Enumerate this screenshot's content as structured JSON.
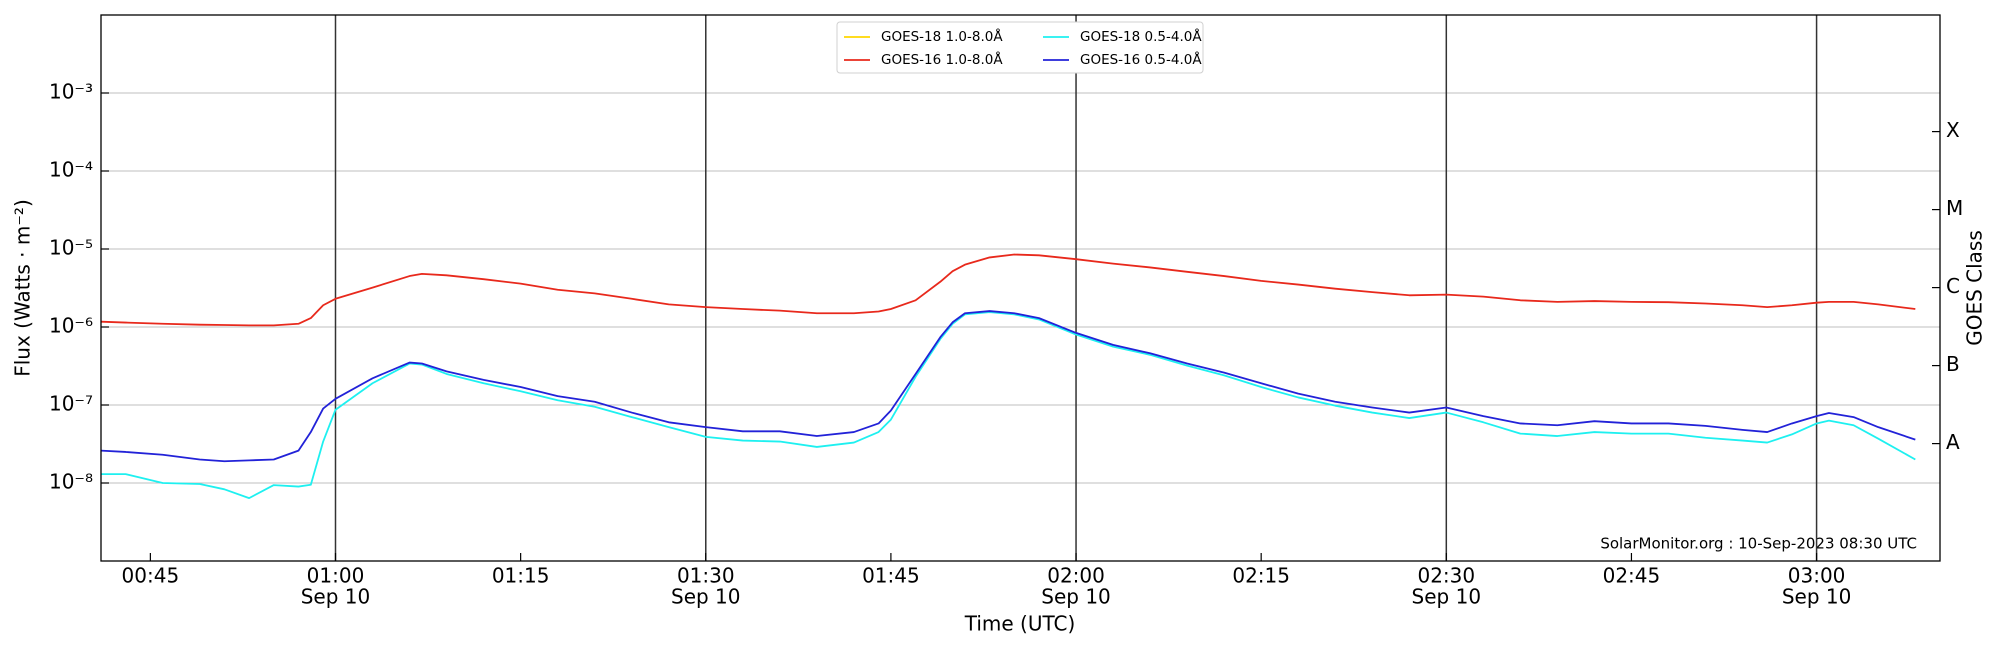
{
  "chart_data": {
    "type": "line",
    "xlabel": "Time (UTC)",
    "ylabel": "Flux (Watts · m⁻²)",
    "y2label": "GOES Class",
    "annotation": "SolarMonitor.org : 10-Sep-2023 08:30 UTC",
    "log_y": true,
    "grid": true,
    "vgrid": true,
    "legend": "top-center",
    "xlim": [
      "00:41",
      "03:10"
    ],
    "xticks": [
      "00:45",
      {
        "value": "01:00",
        "label": [
          "01:00",
          "Sep 10"
        ]
      },
      "01:15",
      {
        "value": "01:30",
        "label": [
          "01:30",
          "Sep 10"
        ]
      },
      "01:45",
      {
        "value": "02:00",
        "label": [
          "02:00",
          "Sep 10"
        ]
      },
      "02:15",
      {
        "value": "02:30",
        "label": [
          "02:30",
          "Sep 10"
        ]
      },
      "02:45",
      {
        "value": "03:00",
        "label": [
          "03:00",
          "Sep 10"
        ]
      }
    ],
    "ylim": [
      1e-09,
      0.01
    ],
    "yticks": [
      {
        "value": 1e-08,
        "label": "10⁻⁸"
      },
      {
        "value": 1e-07,
        "label": "10⁻⁷"
      },
      {
        "value": 1e-06,
        "label": "10⁻⁶"
      },
      {
        "value": 1e-05,
        "label": "10⁻⁵"
      },
      {
        "value": 0.0001,
        "label": "10⁻⁴"
      },
      {
        "value": 0.001,
        "label": "10⁻³"
      }
    ],
    "y2lim": [
      1e-09,
      0.01
    ],
    "y2ticks": [
      {
        "value": 3.2e-08,
        "label": "A"
      },
      {
        "value": 3.2e-07,
        "label": "B"
      },
      {
        "value": 3.2e-06,
        "label": "C"
      },
      {
        "value": 3.2e-05,
        "label": "M"
      },
      {
        "value": 0.00032,
        "label": "X"
      }
    ],
    "x": [
      "00:41",
      "00:43",
      "00:46",
      "00:49",
      "00:51",
      "00:53",
      "00:55",
      "00:57",
      "00:58",
      "00:59",
      "01:00",
      "01:03",
      "01:06",
      "01:07",
      "01:09",
      "01:12",
      "01:15",
      "01:18",
      "01:21",
      "01:24",
      "01:27",
      "01:30",
      "01:33",
      "01:36",
      "01:39",
      "01:42",
      "01:44",
      "01:45",
      "01:47",
      "01:49",
      "01:50",
      "01:51",
      "01:53",
      "01:55",
      "01:57",
      "02:00",
      "02:03",
      "02:06",
      "02:09",
      "02:12",
      "02:15",
      "02:18",
      "02:21",
      "02:24",
      "02:27",
      "02:30",
      "02:33",
      "02:36",
      "02:39",
      "02:42",
      "02:45",
      "02:48",
      "02:51",
      "02:54",
      "02:56",
      "02:58",
      "03:00",
      "03:01",
      "03:03",
      "03:05",
      "03:08"
    ],
    "series": [
      {
        "name": "GOES-18 1.0-8.0Å",
        "color": "#ffd700",
        "values": [
          null,
          null,
          null,
          null,
          null,
          null,
          null,
          null,
          null,
          null,
          null,
          null,
          null,
          null,
          null,
          null,
          null,
          null,
          null,
          null,
          null,
          null,
          null,
          null,
          null,
          null,
          null,
          null,
          null,
          null,
          null,
          null,
          null,
          null,
          null,
          null,
          null,
          null,
          null,
          null,
          null,
          null,
          null,
          null,
          null,
          null,
          null,
          null,
          null,
          null,
          null,
          null,
          null,
          null,
          null,
          null,
          null,
          null,
          null,
          null,
          null
        ]
      },
      {
        "name": "GOES-16 1.0-8.0Å",
        "color": "#e8291c",
        "values": [
          1.17e-06,
          1.14e-06,
          1.1e-06,
          1.07e-06,
          1.06e-06,
          1.05e-06,
          1.05e-06,
          1.1e-06,
          1.3e-06,
          1.9e-06,
          2.3e-06,
          3.2e-06,
          4.5e-06,
          4.8e-06,
          4.6e-06,
          4.1e-06,
          3.6e-06,
          3e-06,
          2.7e-06,
          2.3e-06,
          1.95e-06,
          1.8e-06,
          1.7e-06,
          1.62e-06,
          1.5e-06,
          1.5e-06,
          1.58e-06,
          1.7e-06,
          2.2e-06,
          3.8e-06,
          5.2e-06,
          6.3e-06,
          7.8e-06,
          8.5e-06,
          8.3e-06,
          7.4e-06,
          6.5e-06,
          5.8e-06,
          5.1e-06,
          4.5e-06,
          3.9e-06,
          3.5e-06,
          3.1e-06,
          2.8e-06,
          2.55e-06,
          2.6e-06,
          2.45e-06,
          2.2e-06,
          2.1e-06,
          2.15e-06,
          2.1e-06,
          2.08e-06,
          2e-06,
          1.9e-06,
          1.8e-06,
          1.9e-06,
          2.05e-06,
          2.1e-06,
          2.1e-06,
          1.95e-06,
          1.7e-06
        ]
      },
      {
        "name": "GOES-18 0.5-4.0Å",
        "color": "#1ef0f0",
        "values": [
          1.3e-08,
          1.3e-08,
          1e-08,
          9.7e-09,
          8.3e-09,
          6.4e-09,
          9.4e-09,
          9e-09,
          9.5e-09,
          3.4e-08,
          8.7e-08,
          1.9e-07,
          3.4e-07,
          3.3e-07,
          2.5e-07,
          1.9e-07,
          1.5e-07,
          1.15e-07,
          9.5e-08,
          7e-08,
          5.2e-08,
          3.9e-08,
          3.5e-08,
          3.4e-08,
          2.9e-08,
          3.3e-08,
          4.5e-08,
          6.5e-08,
          2.3e-07,
          7e-07,
          1.1e-06,
          1.45e-06,
          1.55e-06,
          1.45e-06,
          1.25e-06,
          8e-07,
          5.6e-07,
          4.4e-07,
          3.2e-07,
          2.4e-07,
          1.7e-07,
          1.25e-07,
          9.8e-08,
          8e-08,
          6.8e-08,
          8e-08,
          6e-08,
          4.3e-08,
          4e-08,
          4.5e-08,
          4.3e-08,
          4.3e-08,
          3.8e-08,
          3.5e-08,
          3.3e-08,
          4.2e-08,
          5.8e-08,
          6.3e-08,
          5.5e-08,
          3.7e-08,
          2e-08
        ]
      },
      {
        "name": "GOES-16 0.5-4.0Å",
        "color": "#2222d8",
        "values": [
          2.6e-08,
          2.5e-08,
          2.3e-08,
          2e-08,
          1.9e-08,
          1.95e-08,
          2e-08,
          2.6e-08,
          4.5e-08,
          9e-08,
          1.2e-07,
          2.2e-07,
          3.5e-07,
          3.4e-07,
          2.7e-07,
          2.1e-07,
          1.7e-07,
          1.3e-07,
          1.1e-07,
          8e-08,
          6e-08,
          5.2e-08,
          4.6e-08,
          4.6e-08,
          4e-08,
          4.5e-08,
          5.8e-08,
          8.5e-08,
          2.5e-07,
          7.4e-07,
          1.15e-06,
          1.5e-06,
          1.6e-06,
          1.5e-06,
          1.3e-06,
          8.4e-07,
          5.9e-07,
          4.6e-07,
          3.4e-07,
          2.6e-07,
          1.9e-07,
          1.4e-07,
          1.1e-07,
          9.3e-08,
          8e-08,
          9.3e-08,
          7.2e-08,
          5.8e-08,
          5.5e-08,
          6.2e-08,
          5.8e-08,
          5.8e-08,
          5.4e-08,
          4.8e-08,
          4.5e-08,
          5.8e-08,
          7.2e-08,
          7.9e-08,
          7e-08,
          5.2e-08,
          3.6e-08
        ]
      }
    ]
  }
}
